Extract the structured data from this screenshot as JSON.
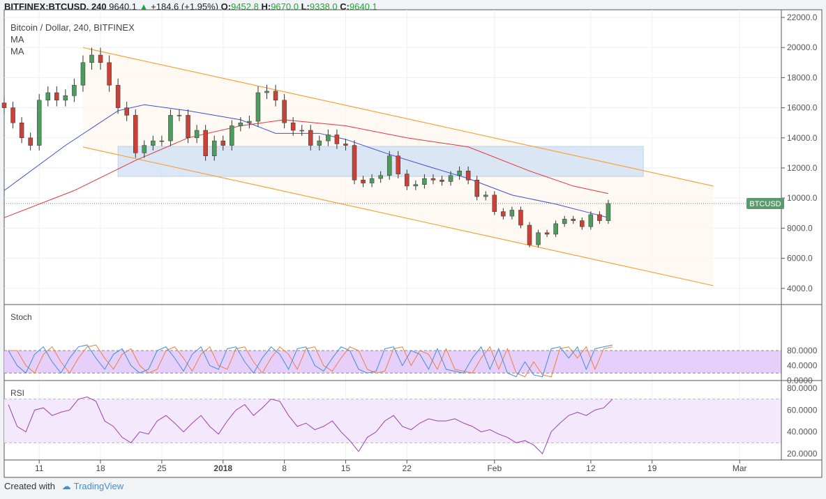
{
  "header": {
    "symbol": "BITFINEX:BTCUSD, 240",
    "last": "9640.1",
    "change": "+184.6 (+1.95%)",
    "o_label": "O:",
    "o": "9452.8",
    "h_label": "H:",
    "h": "9670.0",
    "l_label": "L:",
    "l": "9338.0",
    "c_label": "C:",
    "c": "9640.1",
    "up_icon": "triangle-up-icon"
  },
  "legend": {
    "title": "Bitcoin / Dollar, 240, BITFINEX",
    "ma1": "MA",
    "ma2": "MA"
  },
  "price_label": "BTCUSD",
  "footer": {
    "created": "Created with",
    "brand": "TradingView"
  },
  "colors": {
    "up": "#4f9a5e",
    "down": "#c8423a",
    "ma_fast": "#3b4fe0",
    "ma_slow": "#e8333a",
    "channel": "#f7a33b",
    "zone": "#cfe0f3",
    "stoch_k": "#3d8fe0",
    "stoch_d": "#f07f3c",
    "stoch_fill": "#e6cffb",
    "rsi": "#9b3fb5",
    "rsi_fill": "#f4e8fd",
    "label_bg": "#5b9a6e"
  },
  "chart_data": [
    {
      "type": "candlestick",
      "title": "Bitcoin / Dollar, 240, BITFINEX",
      "x_start": "2017-12-07",
      "x_ticks": [
        "11",
        "18",
        "25",
        "2018",
        "8",
        "15",
        "22",
        "Feb",
        "12",
        "19",
        "Mar"
      ],
      "x_tick_dates": [
        "2017-12-11",
        "2017-12-18",
        "2017-12-25",
        "2018-01-01",
        "2018-01-08",
        "2018-01-15",
        "2018-01-22",
        "2018-02-01",
        "2018-02-12",
        "2018-02-19",
        "2018-03-01"
      ],
      "y_ticks": [
        4000,
        6000,
        8000,
        10000,
        12000,
        14000,
        16000,
        18000,
        20000,
        22000
      ],
      "y_tick_labels": [
        "4000.0",
        "6000.0",
        "8000.0",
        "10000.0",
        "12000.0",
        "14000.0",
        "16000.0",
        "18000.0",
        "20000.0",
        "22000.0"
      ],
      "ylim": [
        3500,
        22500
      ],
      "grid": true,
      "close": [
        16000,
        15000,
        14000,
        13500,
        16500,
        17000,
        16500,
        16800,
        17500,
        19000,
        19500,
        19000,
        17500,
        16000,
        15500,
        13000,
        13500,
        13800,
        13800,
        15500,
        15500,
        14000,
        14500,
        12800,
        13800,
        13500,
        14800,
        15000,
        15100,
        17000,
        17100,
        16500,
        15000,
        14500,
        14500,
        13500,
        13800,
        14200,
        13600,
        13500,
        11200,
        11000,
        11300,
        11500,
        12800,
        11600,
        10800,
        10900,
        11300,
        11200,
        11100,
        11500,
        11800,
        11200,
        10100,
        10200,
        9100,
        8800,
        9200,
        8200,
        6900,
        7700,
        7600,
        8300,
        8600,
        8500,
        8100,
        8900,
        8500,
        9640.1
      ],
      "last_price": 9640.1,
      "ma_series": [
        {
          "name": "MA",
          "color": "#3b4fe0",
          "points": [
            [
              "2017-12-07",
              10500
            ],
            [
              "2017-12-14",
              13500
            ],
            [
              "2017-12-20",
              15800
            ],
            [
              "2017-12-23",
              16200
            ],
            [
              "2017-12-28",
              15800
            ],
            [
              "2018-01-03",
              15200
            ],
            [
              "2018-01-07",
              14300
            ],
            [
              "2018-01-12",
              14300
            ],
            [
              "2018-01-15",
              13900
            ],
            [
              "2018-01-20",
              12900
            ],
            [
              "2018-01-25",
              12000
            ],
            [
              "2018-01-29",
              11300
            ],
            [
              "2018-02-03",
              10200
            ],
            [
              "2018-02-08",
              9600
            ],
            [
              "2018-02-12",
              9000
            ],
            [
              "2018-02-14",
              8700
            ]
          ]
        },
        {
          "name": "MA",
          "color": "#e8333a",
          "points": [
            [
              "2017-12-07",
              8700
            ],
            [
              "2017-12-15",
              10500
            ],
            [
              "2017-12-22",
              12500
            ],
            [
              "2017-12-28",
              14000
            ],
            [
              "2018-01-03",
              14800
            ],
            [
              "2018-01-08",
              15200
            ],
            [
              "2018-01-15",
              14800
            ],
            [
              "2018-01-22",
              14000
            ],
            [
              "2018-01-29",
              13400
            ],
            [
              "2018-02-05",
              11800
            ],
            [
              "2018-02-10",
              10800
            ],
            [
              "2018-02-14",
              10300
            ]
          ]
        }
      ],
      "channel": {
        "upper": [
          [
            "2017-12-16",
            20000
          ],
          [
            "2018-02-26",
            10800
          ]
        ],
        "lower": [
          [
            "2017-12-16",
            13390
          ],
          [
            "2018-02-26",
            4180
          ]
        ]
      },
      "zone": {
        "from": "2017-12-20",
        "to": "2018-02-18",
        "low": 11440,
        "high": 13430
      }
    },
    {
      "type": "line",
      "title": "Stoch",
      "ylim": [
        0,
        95
      ],
      "y_ticks": [
        0,
        40,
        80
      ],
      "y_tick_labels": [
        "0.0000",
        "40.0000",
        "80.0000"
      ],
      "bands": [
        20,
        80
      ],
      "series": [
        {
          "name": "K",
          "values": [
            80,
            40,
            20,
            70,
            90,
            50,
            20,
            60,
            90,
            95,
            60,
            30,
            70,
            85,
            40,
            20,
            30,
            80,
            90,
            60,
            25,
            70,
            90,
            40,
            30,
            85,
            90,
            50,
            20,
            60,
            90,
            70,
            30,
            85,
            90,
            40,
            25,
            60,
            90,
            80,
            30,
            20,
            25,
            85,
            90,
            40,
            80,
            70,
            30,
            85,
            30,
            25,
            20,
            60,
            90,
            30,
            85,
            20,
            10,
            50,
            15,
            10,
            85,
            90,
            60,
            90,
            30,
            85,
            90,
            95
          ]
        },
        {
          "name": "D",
          "values": [
            80,
            80,
            40,
            20,
            70,
            90,
            50,
            20,
            60,
            90,
            95,
            60,
            30,
            70,
            85,
            40,
            20,
            30,
            80,
            90,
            60,
            25,
            70,
            90,
            40,
            30,
            85,
            90,
            50,
            20,
            60,
            90,
            70,
            30,
            85,
            90,
            40,
            25,
            60,
            90,
            80,
            30,
            20,
            25,
            85,
            90,
            40,
            80,
            70,
            30,
            85,
            30,
            25,
            20,
            60,
            90,
            30,
            85,
            20,
            10,
            50,
            15,
            10,
            85,
            90,
            60,
            90,
            30,
            85,
            90
          ]
        }
      ]
    },
    {
      "type": "line",
      "title": "RSI",
      "ylim": [
        13,
        86
      ],
      "y_ticks": [
        20,
        40,
        60,
        80
      ],
      "y_tick_labels": [
        "20.0000",
        "40.0000",
        "60.0000",
        "80.0000"
      ],
      "bands": [
        30,
        70
      ],
      "values": [
        65,
        45,
        40,
        60,
        62,
        55,
        58,
        60,
        70,
        72,
        68,
        50,
        45,
        35,
        30,
        40,
        38,
        50,
        55,
        48,
        40,
        48,
        55,
        45,
        38,
        50,
        60,
        65,
        55,
        62,
        70,
        68,
        55,
        45,
        48,
        42,
        45,
        50,
        40,
        32,
        22,
        35,
        40,
        50,
        55,
        45,
        42,
        48,
        52,
        50,
        50,
        52,
        48,
        45,
        40,
        42,
        38,
        35,
        30,
        32,
        28,
        20,
        40,
        48,
        55,
        58,
        55,
        60,
        62,
        70
      ]
    }
  ]
}
